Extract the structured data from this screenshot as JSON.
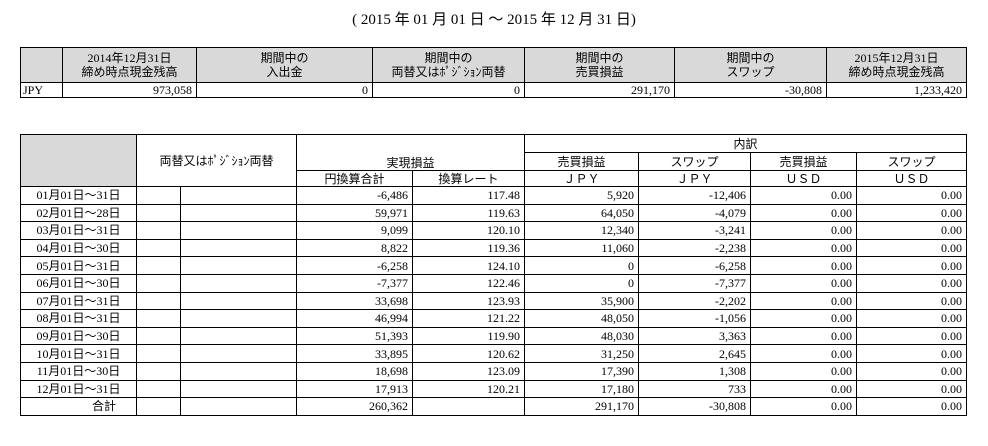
{
  "period": "( 2015 年 01 月 01 日 ～ 2015 年 12 月 31 日)",
  "summary": {
    "headers": [
      [
        "2014年12月31日",
        "締め時点現金残高"
      ],
      [
        "期間中の",
        "入出金"
      ],
      [
        "期間中の",
        "両替又はﾎﾟｼﾞｼｮﾝ両替"
      ],
      [
        "期間中の",
        "売買損益"
      ],
      [
        "期間中の",
        "スワップ"
      ],
      [
        "2015年12月31日",
        "締め時点現金残高"
      ]
    ],
    "rows": [
      [
        "JPY",
        "973,058",
        "0",
        "0",
        "291,170",
        "-30,808",
        "1,233,420"
      ]
    ]
  },
  "detail": {
    "group_header": "両替又はﾎﾟｼﾞｼｮﾝ両替",
    "realized": "実現損益",
    "breakdown": "内訳",
    "sub_headers": [
      "売買損益",
      "スワップ",
      "売買損益",
      "スワップ"
    ],
    "units": [
      "円換算合計",
      "換算レート",
      "ＪＰＹ",
      "ＪＰＹ",
      "ＵＳＤ",
      "ＵＳＤ"
    ],
    "rows": [
      [
        "01月01日～31日",
        "-6,486",
        "117.48",
        "5,920",
        "-12,406",
        "0.00",
        "0.00"
      ],
      [
        "02月01日～28日",
        "59,971",
        "119.63",
        "64,050",
        "-4,079",
        "0.00",
        "0.00"
      ],
      [
        "03月01日～31日",
        "9,099",
        "120.10",
        "12,340",
        "-3,241",
        "0.00",
        "0.00"
      ],
      [
        "04月01日～30日",
        "8,822",
        "119.36",
        "11,060",
        "-2,238",
        "0.00",
        "0.00"
      ],
      [
        "05月01日～31日",
        "-6,258",
        "124.10",
        "0",
        "-6,258",
        "0.00",
        "0.00"
      ],
      [
        "06月01日～30日",
        "-7,377",
        "122.46",
        "0",
        "-7,377",
        "0.00",
        "0.00"
      ],
      [
        "07月01日～31日",
        "33,698",
        "123.93",
        "35,900",
        "-2,202",
        "0.00",
        "0.00"
      ],
      [
        "08月01日～31日",
        "46,994",
        "121.22",
        "48,050",
        "-1,056",
        "0.00",
        "0.00"
      ],
      [
        "09月01日～30日",
        "51,393",
        "119.90",
        "48,030",
        "3,363",
        "0.00",
        "0.00"
      ],
      [
        "10月01日～31日",
        "33,895",
        "120.62",
        "31,250",
        "2,645",
        "0.00",
        "0.00"
      ],
      [
        "11月01日～30日",
        "18,698",
        "123.09",
        "17,390",
        "1,308",
        "0.00",
        "0.00"
      ],
      [
        "12月01日～31日",
        "17,913",
        "120.21",
        "17,180",
        "733",
        "0.00",
        "0.00"
      ]
    ],
    "total": {
      "label": "合計",
      "yen_total": "260,362",
      "jpy_trade": "291,170",
      "jpy_swap": "-30,808",
      "usd_trade": "0.00",
      "usd_swap": "0.00"
    }
  }
}
